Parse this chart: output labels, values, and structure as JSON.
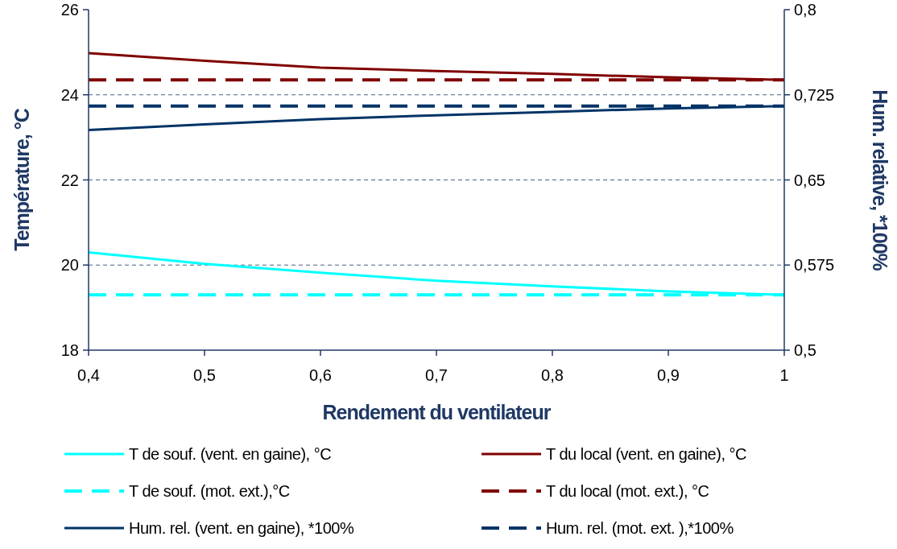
{
  "chart_data": {
    "type": "line",
    "xlabel": "Rendement du ventilateur",
    "ylabel": "Température, °C",
    "y2label": "Hum. relative, *100%",
    "x": [
      0.4,
      0.5,
      0.6,
      0.7,
      0.8,
      0.9,
      1.0
    ],
    "xlim": [
      0.4,
      1.0
    ],
    "xticks": [
      {
        "value": 0.4,
        "label": "0,4"
      },
      {
        "value": 0.5,
        "label": "0,5"
      },
      {
        "value": 0.6,
        "label": "0,6"
      },
      {
        "value": 0.7,
        "label": "0,7"
      },
      {
        "value": 0.8,
        "label": "0,8"
      },
      {
        "value": 0.9,
        "label": "0,9"
      },
      {
        "value": 1.0,
        "label": "1"
      }
    ],
    "ylim": [
      18,
      26
    ],
    "yticks": [
      18,
      20,
      22,
      24,
      26
    ],
    "y2lim": [
      0.5,
      0.8
    ],
    "y2ticks": [
      {
        "value": 0.5,
        "label": "0,5"
      },
      {
        "value": 0.575,
        "label": "0,575"
      },
      {
        "value": 0.65,
        "label": "0,65"
      },
      {
        "value": 0.725,
        "label": "0,725"
      },
      {
        "value": 0.8,
        "label": "0,8"
      }
    ],
    "grid": "y",
    "legend": "bottom",
    "marker": "none",
    "series": [
      {
        "name": "T de souf. (vent. en gaine), °C",
        "color": "#00ffff",
        "line_style": "solid",
        "values": [
          20.3,
          20.03,
          19.82,
          19.63,
          19.5,
          19.38,
          19.3
        ]
      },
      {
        "name": "T du local (vent. en gaine), °C",
        "color": "#800000",
        "line_style": "solid",
        "values": [
          24.98,
          24.8,
          24.64,
          24.56,
          24.49,
          24.41,
          24.35
        ]
      },
      {
        "name": "T de souf. (mot. ext.),°C",
        "color": "#00ffff",
        "line_style": "dashed",
        "values": [
          19.3,
          19.3,
          19.3,
          19.3,
          19.3,
          19.3,
          19.3
        ]
      },
      {
        "name": "T du local (mot. ext.), °C",
        "color": "#800000",
        "line_style": "dashed",
        "values": [
          24.35,
          24.35,
          24.35,
          24.35,
          24.35,
          24.35,
          24.35
        ]
      },
      {
        "name": "Hum. rel. (vent. en gaine), *100%",
        "color": "#003366",
        "line_style": "solid",
        "axis": "y2",
        "values": [
          0.694,
          0.699,
          0.7035,
          0.707,
          0.71,
          0.713,
          0.715
        ]
      },
      {
        "name": "Hum. rel. (mot. ext. ),*100%",
        "color": "#003366",
        "line_style": "dashed",
        "axis": "y2",
        "values": [
          0.715,
          0.715,
          0.715,
          0.715,
          0.715,
          0.715,
          0.715
        ]
      }
    ]
  }
}
